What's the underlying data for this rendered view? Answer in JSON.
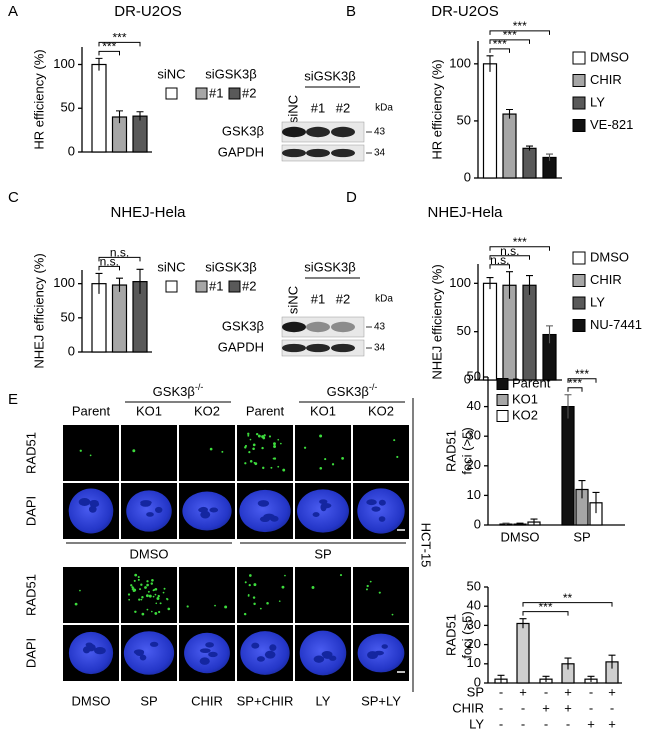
{
  "panel_labels": [
    "A",
    "B",
    "C",
    "D",
    "E"
  ],
  "chart_data": [
    {
      "type": "bar",
      "title": "DR-U2OS",
      "y_label": "HR efficiency (%)",
      "categories": [
        null,
        null,
        null
      ],
      "values": [
        100,
        40,
        41
      ],
      "errors": [
        7,
        7,
        5
      ],
      "colors": [
        "#ffffff",
        "#a6a6a6",
        "#595959"
      ],
      "ylim": [
        0,
        120
      ],
      "yticks": [
        0,
        50,
        100
      ],
      "legend": {
        "items": [
          "siNC",
          "#1",
          "#2"
        ],
        "group": "siGSK3β"
      },
      "brackets": [
        {
          "from": 0,
          "to": 1,
          "label": "***"
        },
        {
          "from": 0,
          "to": 2,
          "label": "***"
        }
      ]
    },
    {
      "type": "bar",
      "title": "DR-U2OS",
      "y_label": "HR efficiency (%)",
      "categories": [
        null,
        null,
        null,
        null
      ],
      "values": [
        100,
        56,
        26,
        18
      ],
      "errors": [
        7,
        4,
        2,
        3
      ],
      "colors": [
        "#ffffff",
        "#a6a6a6",
        "#595959",
        "#111111"
      ],
      "ylim": [
        0,
        120
      ],
      "yticks": [
        0,
        50,
        100
      ],
      "legend": {
        "items": [
          "DMSO",
          "CHIR",
          "LY",
          "VE-821"
        ]
      },
      "brackets": [
        {
          "from": 0,
          "to": 1,
          "label": "***"
        },
        {
          "from": 0,
          "to": 2,
          "label": "***"
        },
        {
          "from": 0,
          "to": 3,
          "label": "***"
        }
      ]
    },
    {
      "type": "bar",
      "title": "NHEJ-Hela",
      "y_label": "NHEJ efficiency (%)",
      "categories": [
        null,
        null,
        null
      ],
      "values": [
        100,
        98,
        103
      ],
      "errors": [
        15,
        10,
        18
      ],
      "colors": [
        "#ffffff",
        "#a6a6a6",
        "#595959"
      ],
      "ylim": [
        0,
        120
      ],
      "yticks": [
        0,
        50,
        100
      ],
      "legend": {
        "items": [
          "siNC",
          "#1",
          "#2"
        ],
        "group": "siGSK3β"
      },
      "brackets": [
        {
          "from": 0,
          "to": 1,
          "label": "n.s."
        },
        {
          "from": 0,
          "to": 2,
          "label": "n.s."
        }
      ]
    },
    {
      "type": "bar",
      "title": "NHEJ-Hela",
      "y_label": "NHEJ efficiency (%)",
      "categories": [
        null,
        null,
        null,
        null
      ],
      "values": [
        100,
        98,
        98,
        47
      ],
      "errors": [
        6,
        14,
        10,
        9
      ],
      "colors": [
        "#ffffff",
        "#a6a6a6",
        "#595959",
        "#111111"
      ],
      "ylim": [
        0,
        120
      ],
      "yticks": [
        0,
        50,
        100
      ],
      "legend": {
        "items": [
          "DMSO",
          "CHIR",
          "LY",
          "NU-7441"
        ]
      },
      "brackets": [
        {
          "from": 0,
          "to": 1,
          "label": "n.s."
        },
        {
          "from": 0,
          "to": 2,
          "label": "n.s."
        },
        {
          "from": 0,
          "to": 3,
          "label": "***"
        }
      ]
    },
    {
      "type": "bar",
      "y_label": [
        "RAD51",
        "foci (>5)"
      ],
      "categories": [
        "DMSO",
        "SP"
      ],
      "series": [
        {
          "name": "Parent",
          "color": "#111111",
          "values": [
            0.3,
            40
          ],
          "errors": [
            0.3,
            4
          ]
        },
        {
          "name": "KO1",
          "color": "#a6a6a6",
          "values": [
            0.3,
            12
          ],
          "errors": [
            0.3,
            3
          ]
        },
        {
          "name": "KO2",
          "color": "#ffffff",
          "values": [
            1,
            7.5
          ],
          "errors": [
            1,
            3.5
          ]
        }
      ],
      "ylim": [
        0,
        50
      ],
      "yticks": [
        0,
        10,
        20,
        30,
        40,
        50
      ],
      "brackets": [
        {
          "from": 3,
          "to": 4,
          "label": "***"
        },
        {
          "from": 3,
          "to": 5,
          "label": "***"
        }
      ]
    },
    {
      "type": "bar",
      "y_label": [
        "RAD51",
        "foci (>5)"
      ],
      "categories": [
        null,
        null,
        null,
        null,
        null,
        null
      ],
      "values": [
        2,
        31,
        2,
        10,
        2,
        11
      ],
      "errors": [
        2,
        2.5,
        1.5,
        3,
        1.5,
        3.5
      ],
      "colors": [
        "#ffffff",
        "#cfcfcf",
        "#ffffff",
        "#cfcfcf",
        "#ffffff",
        "#cfcfcf"
      ],
      "ylim": [
        0,
        50
      ],
      "yticks": [
        0,
        10,
        20,
        30,
        40,
        50
      ],
      "conditions": [
        {
          "name": "SP",
          "signs": [
            "-",
            "+",
            "-",
            "+",
            "-",
            "+"
          ]
        },
        {
          "name": "CHIR",
          "signs": [
            "-",
            "-",
            "+",
            "+",
            "-",
            "-"
          ]
        },
        {
          "name": "LY",
          "signs": [
            "-",
            "-",
            "-",
            "-",
            "+",
            "+"
          ]
        }
      ],
      "brackets": [
        {
          "from": 1,
          "to": 3,
          "label": "***"
        },
        {
          "from": 1,
          "to": 5,
          "label": "**"
        }
      ]
    }
  ],
  "blots": [
    {
      "header": "siGSK3β",
      "lanes": [
        "siNC",
        "#1",
        "#2"
      ],
      "unit": "kDa",
      "rows": [
        {
          "name": "GSK3β",
          "marker": "43"
        },
        {
          "name": "GAPDH",
          "marker": "34"
        }
      ]
    },
    {
      "header": "siGSK3β",
      "lanes": [
        "siNC",
        "#1",
        "#2"
      ],
      "unit": "kDa",
      "rows": [
        {
          "name": "GSK3β",
          "marker": "43"
        },
        {
          "name": "GAPDH",
          "marker": "34"
        }
      ]
    }
  ],
  "micrographs": {
    "cell_line": "HCT-15",
    "knockout_label": {
      "text": "GSK3β",
      "sup": "-/-"
    },
    "top": {
      "row_labels": [
        "RAD51",
        "DAPI"
      ],
      "columns": [
        "Parent",
        "KO1",
        "KO2",
        "Parent",
        "KO1",
        "KO2"
      ],
      "treatments": [
        "DMSO",
        "SP"
      ]
    },
    "bottom": {
      "row_labels": [
        "RAD51",
        "DAPI"
      ],
      "columns": [
        "DMSO",
        "SP",
        "CHIR",
        "SP+CHIR",
        "LY",
        "SP+LY"
      ]
    }
  }
}
